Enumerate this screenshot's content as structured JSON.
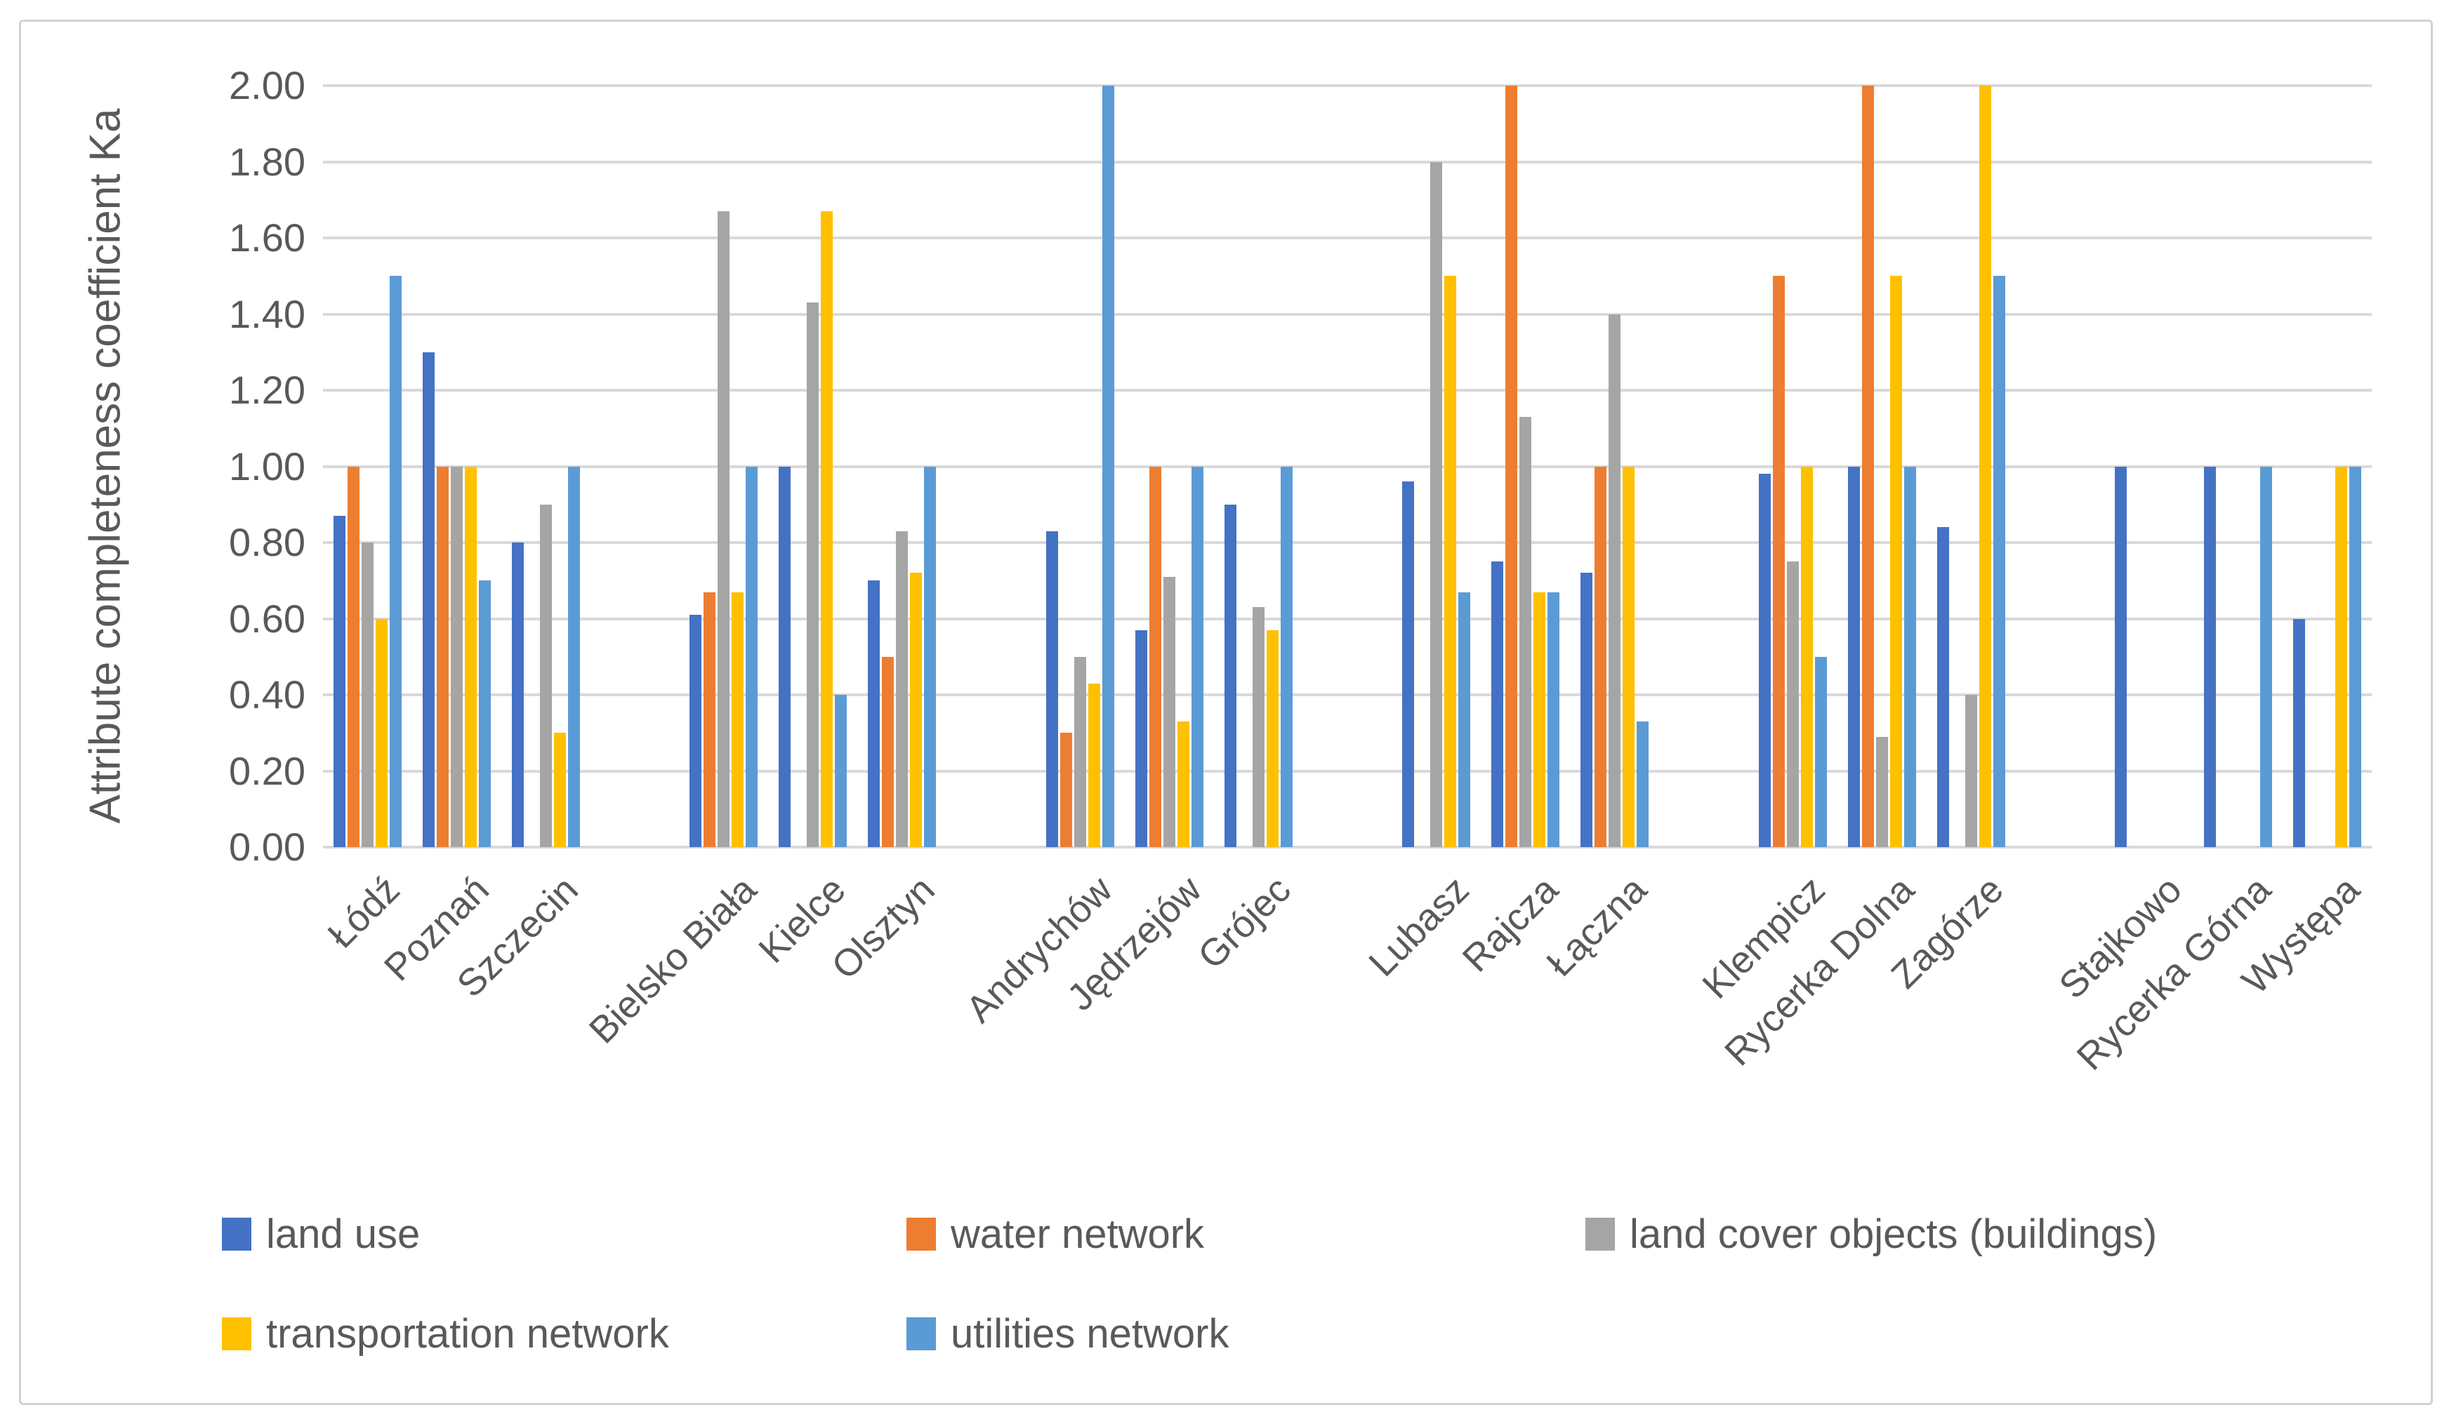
{
  "chart_data": {
    "type": "bar",
    "title": "",
    "xlabel": "",
    "ylabel": "Attribute completeness coefficient Ka",
    "ylim": [
      0.0,
      2.0
    ],
    "ytick_step": 0.2,
    "ytick_labels": [
      "0.00",
      "0.20",
      "0.40",
      "0.60",
      "0.80",
      "1.00",
      "1.20",
      "1.40",
      "1.60",
      "1.80",
      "2.00"
    ],
    "grid": true,
    "legend_position": "bottom",
    "cluster_size": 3,
    "cluster_gap_slots": 1,
    "categories": [
      "Łódź",
      "Poznań",
      "Szczecin",
      "Bielsko Biała",
      "Kielce",
      "Olsztyn",
      "Andrychów",
      "Jędrzejów",
      "Grójec",
      "Lubasz",
      "Rajcza",
      "Łączna",
      "Klempicz",
      "Rycerka Dolna",
      "Zagórze",
      "Stajkowo",
      "Rycerka Górna",
      "Występa"
    ],
    "series": [
      {
        "name": "land use",
        "color": "#4472C4",
        "values": [
          0.87,
          1.3,
          0.8,
          0.61,
          1.0,
          0.7,
          0.83,
          0.57,
          0.9,
          0.96,
          0.75,
          0.72,
          0.98,
          1.0,
          0.84,
          1.0,
          1.0,
          0.6
        ]
      },
      {
        "name": "water network",
        "color": "#ED7D31",
        "values": [
          1.0,
          1.0,
          null,
          0.67,
          null,
          0.5,
          0.3,
          1.0,
          null,
          null,
          2.0,
          1.0,
          1.5,
          2.0,
          null,
          null,
          null,
          null
        ]
      },
      {
        "name": "land cover objects (buildings)",
        "color": "#A5A5A5",
        "values": [
          0.8,
          1.0,
          0.9,
          1.67,
          1.43,
          0.83,
          0.5,
          0.71,
          0.63,
          1.8,
          1.13,
          1.4,
          0.75,
          0.29,
          0.4,
          null,
          null,
          null
        ]
      },
      {
        "name": "transportation network",
        "color": "#FFC000",
        "values": [
          0.6,
          1.0,
          0.3,
          0.67,
          1.67,
          0.72,
          0.43,
          0.33,
          0.57,
          1.5,
          0.67,
          1.0,
          1.0,
          1.5,
          2.0,
          null,
          null,
          1.0
        ]
      },
      {
        "name": "utilities network",
        "color": "#5B9BD5",
        "values": [
          1.5,
          0.7,
          1.0,
          1.0,
          0.4,
          1.0,
          2.0,
          1.0,
          1.0,
          0.67,
          0.67,
          0.33,
          0.5,
          1.0,
          1.5,
          null,
          1.0,
          1.0
        ]
      }
    ],
    "colors": {
      "grid": "#D9D9D9",
      "axis": "#D9D9D9",
      "text": "#595959",
      "border": "#D2D2D2",
      "background": "#FFFFFF"
    }
  }
}
